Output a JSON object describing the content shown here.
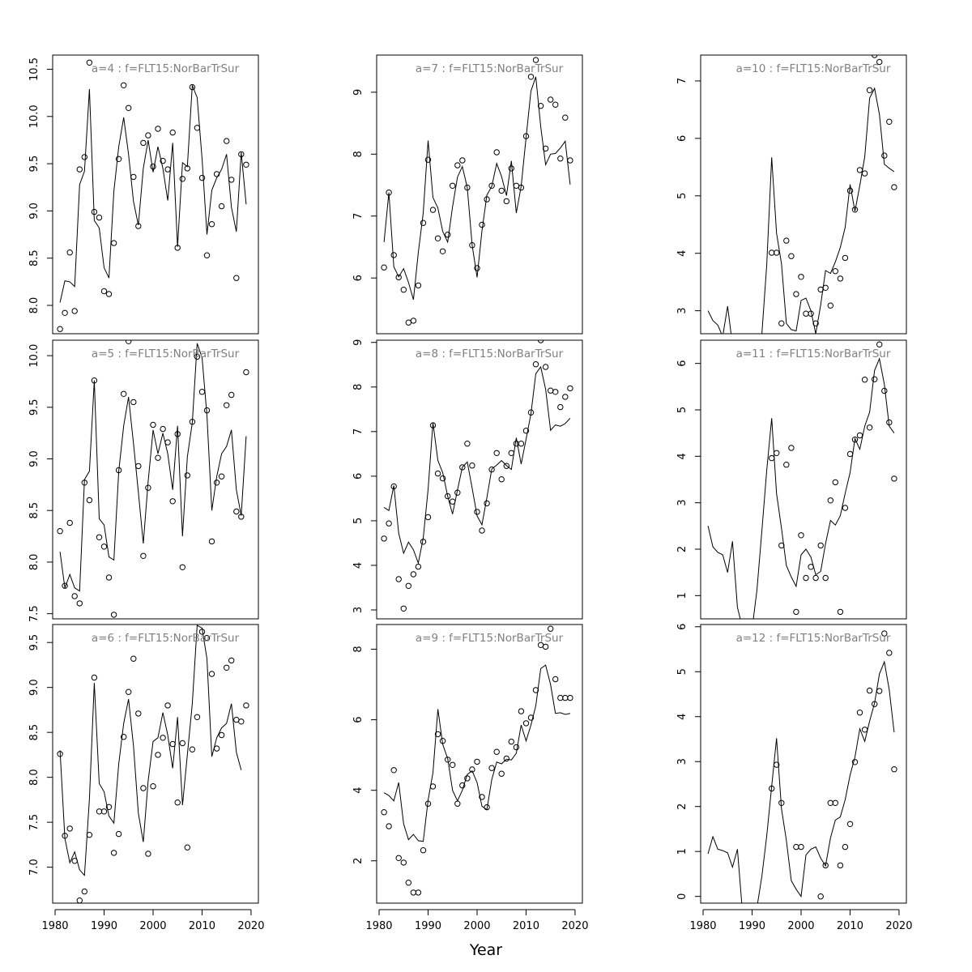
{
  "figure": {
    "xlabel": "Year"
  },
  "chart_data": [
    {
      "type": "scatter",
      "title": "a=4  :  f=FLT15:NorBarTrSur",
      "ylim": [
        7.7,
        10.65
      ],
      "xlim": [
        1981,
        2019
      ],
      "yticks": [
        8.0,
        8.5,
        9.0,
        9.5,
        10.0,
        10.5
      ],
      "xticks": [],
      "observed": [
        7.75,
        7.92,
        8.56,
        7.94,
        9.44,
        9.57,
        10.57,
        8.99,
        8.93,
        8.15,
        8.12,
        8.66,
        9.55,
        10.33,
        10.09,
        9.36,
        8.84,
        9.72,
        9.8,
        9.47,
        9.87,
        9.53,
        9.44,
        9.83,
        8.61,
        9.34,
        9.45,
        10.31,
        9.88,
        9.35,
        8.53,
        8.86,
        9.39,
        9.05,
        9.74,
        9.33,
        8.29,
        9.6,
        9.49
      ],
      "fitted": [
        8.03,
        8.26,
        8.25,
        8.2,
        9.28,
        9.42,
        10.29,
        8.9,
        8.82,
        8.4,
        8.29,
        9.21,
        9.68,
        9.99,
        9.6,
        9.1,
        8.85,
        9.45,
        9.75,
        9.41,
        9.68,
        9.45,
        9.11,
        9.72,
        8.62,
        9.51,
        9.47,
        10.33,
        10.2,
        9.55,
        8.75,
        9.22,
        9.35,
        9.44,
        9.6,
        9.04,
        8.78,
        9.62,
        9.07
      ]
    },
    {
      "type": "scatter",
      "title": "a=7  :  f=FLT15:NorBarTrSur",
      "ylim": [
        5.1,
        9.6
      ],
      "xlim": [
        1981,
        2019
      ],
      "yticks": [
        6,
        7,
        8,
        9
      ],
      "xticks": [],
      "observed": [
        6.17,
        7.38,
        6.37,
        6.01,
        5.81,
        5.28,
        5.31,
        5.88,
        6.89,
        7.91,
        7.1,
        6.64,
        6.43,
        6.7,
        7.49,
        7.82,
        7.9,
        7.46,
        6.53,
        6.16,
        6.86,
        7.27,
        7.49,
        8.03,
        7.41,
        7.24,
        7.77,
        7.49,
        7.46,
        8.29,
        9.25,
        9.52,
        8.78,
        8.09,
        8.88,
        8.8,
        7.93,
        8.59,
        7.9
      ],
      "fitted": [
        6.58,
        7.38,
        6.18,
        6.02,
        6.15,
        5.93,
        5.65,
        6.41,
        7.05,
        8.22,
        7.3,
        7.13,
        6.75,
        6.58,
        7.15,
        7.63,
        7.8,
        7.46,
        6.53,
        6.01,
        6.76,
        7.34,
        7.48,
        7.85,
        7.64,
        7.33,
        7.89,
        7.05,
        7.48,
        8.27,
        9.02,
        9.25,
        8.44,
        7.83,
        8.0,
        8.01,
        8.1,
        8.21,
        7.51
      ]
    },
    {
      "type": "scatter",
      "title": "a=10  :  f=FLT15:NorBarTrSur",
      "ylim": [
        2.6,
        7.45
      ],
      "xlim": [
        1981,
        2019
      ],
      "yticks": [
        3,
        4,
        5,
        6,
        7
      ],
      "xticks": [],
      "observed": [
        null,
        null,
        null,
        null,
        null,
        null,
        null,
        null,
        null,
        null,
        null,
        null,
        null,
        4.01,
        4.01,
        2.78,
        4.22,
        3.95,
        3.29,
        3.59,
        2.95,
        2.95,
        2.78,
        3.37,
        3.4,
        3.09,
        3.69,
        3.56,
        3.92,
        5.09,
        4.76,
        5.45,
        5.39,
        6.84,
        7.45,
        7.33,
        5.7,
        6.29,
        5.15
      ],
      "fitted": [
        3.0,
        2.83,
        2.75,
        2.55,
        3.08,
        2.4,
        2.2,
        2.1,
        2.0,
        2.05,
        2.3,
        2.6,
        3.8,
        5.67,
        4.35,
        3.82,
        2.78,
        2.67,
        2.65,
        3.18,
        3.22,
        3.0,
        2.6,
        3.1,
        3.7,
        3.65,
        3.85,
        4.1,
        4.45,
        5.2,
        4.73,
        5.18,
        5.68,
        6.7,
        6.87,
        6.42,
        5.55,
        5.48,
        5.42
      ]
    },
    {
      "type": "scatter",
      "title": "a=5  :  f=FLT15:NorBarTrSur",
      "ylim": [
        7.45,
        10.15
      ],
      "xlim": [
        1981,
        2019
      ],
      "yticks": [
        7.5,
        8.0,
        8.5,
        9.0,
        9.5,
        10.0
      ],
      "xticks": [],
      "observed": [
        8.3,
        7.77,
        8.38,
        7.67,
        7.6,
        8.77,
        8.6,
        9.76,
        8.24,
        8.15,
        7.85,
        7.49,
        8.89,
        9.63,
        10.14,
        9.55,
        8.93,
        8.06,
        8.72,
        9.33,
        9.01,
        9.29,
        9.16,
        8.59,
        9.24,
        7.95,
        8.84,
        9.36,
        9.99,
        9.65,
        9.47,
        8.2,
        8.77,
        8.83,
        9.52,
        9.62,
        8.49,
        8.44,
        9.84
      ],
      "fitted": [
        8.1,
        7.75,
        7.88,
        7.75,
        7.72,
        8.8,
        8.88,
        9.76,
        8.42,
        8.36,
        8.05,
        8.02,
        8.88,
        9.32,
        9.6,
        9.15,
        8.68,
        8.18,
        8.78,
        9.28,
        9.05,
        9.25,
        9.05,
        8.7,
        9.32,
        8.25,
        9.02,
        9.35,
        10.12,
        9.98,
        9.42,
        8.5,
        8.83,
        9.05,
        9.12,
        9.28,
        8.7,
        8.45,
        9.22
      ]
    },
    {
      "type": "scatter",
      "title": "a=8  :  f=FLT15:NorBarTrSur",
      "ylim": [
        2.8,
        9.05
      ],
      "xlim": [
        1981,
        2019
      ],
      "yticks": [
        3,
        4,
        5,
        6,
        7,
        8,
        9
      ],
      "xticks": [],
      "observed": [
        4.6,
        4.94,
        5.77,
        3.69,
        3.03,
        3.54,
        3.8,
        3.97,
        4.53,
        5.08,
        7.14,
        6.06,
        5.95,
        5.55,
        5.43,
        5.63,
        6.2,
        6.73,
        6.24,
        5.2,
        4.78,
        5.39,
        6.15,
        6.52,
        5.93,
        6.23,
        6.52,
        6.73,
        6.73,
        7.02,
        7.43,
        8.51,
        9.05,
        8.45,
        7.92,
        7.89,
        7.55,
        7.78,
        7.97
      ],
      "fitted": [
        5.3,
        5.23,
        5.79,
        4.72,
        4.27,
        4.52,
        4.35,
        4.05,
        4.61,
        5.7,
        7.2,
        6.35,
        6.08,
        5.55,
        5.15,
        5.69,
        6.2,
        6.32,
        5.73,
        5.11,
        4.91,
        5.52,
        6.16,
        6.25,
        6.35,
        6.24,
        6.15,
        6.86,
        6.27,
        6.83,
        7.4,
        8.3,
        8.45,
        7.95,
        7.03,
        7.15,
        7.12,
        7.18,
        7.3
      ]
    },
    {
      "type": "scatter",
      "title": "a=11  :  f=FLT15:NorBarTrSur",
      "ylim": [
        0.5,
        6.5
      ],
      "xlim": [
        1981,
        2019
      ],
      "yticks": [
        1,
        2,
        3,
        4,
        5,
        6
      ],
      "xticks": [],
      "observed": [
        null,
        null,
        null,
        null,
        null,
        null,
        null,
        null,
        null,
        null,
        null,
        null,
        null,
        3.96,
        4.07,
        2.08,
        3.82,
        4.18,
        0.65,
        2.3,
        1.38,
        1.62,
        1.38,
        2.08,
        1.38,
        3.05,
        3.44,
        0.65,
        2.89,
        4.05,
        4.36,
        4.45,
        5.65,
        4.62,
        5.66,
        6.41,
        5.41,
        4.73,
        3.52
      ],
      "fitted": [
        2.5,
        2.05,
        1.93,
        1.88,
        1.5,
        2.17,
        0.75,
        0.32,
        0.2,
        0.28,
        1.12,
        2.4,
        3.7,
        4.82,
        3.2,
        2.45,
        1.65,
        1.4,
        1.2,
        1.88,
        2.0,
        1.83,
        1.45,
        1.52,
        2.12,
        2.62,
        2.52,
        2.72,
        3.2,
        3.65,
        4.38,
        4.15,
        4.65,
        4.95,
        5.85,
        6.1,
        5.55,
        4.65,
        4.5
      ]
    },
    {
      "type": "scatter",
      "title": "a=6  :  f=FLT15:NorBarTrSur",
      "ylim": [
        6.6,
        9.7
      ],
      "xlim": [
        1981,
        2019
      ],
      "yticks": [
        7.0,
        7.5,
        8.0,
        8.5,
        9.0,
        9.5
      ],
      "xticks": [
        1980,
        1990,
        2000,
        2010,
        2020
      ],
      "observed": [
        8.26,
        7.35,
        7.43,
        7.07,
        6.63,
        6.73,
        7.36,
        9.11,
        7.62,
        7.62,
        7.67,
        7.16,
        7.37,
        8.45,
        8.95,
        9.32,
        8.71,
        7.88,
        7.15,
        7.9,
        8.25,
        8.44,
        8.8,
        8.37,
        7.72,
        8.38,
        7.22,
        8.31,
        8.67,
        9.62,
        9.55,
        9.15,
        8.32,
        8.47,
        9.22,
        9.3,
        8.64,
        8.62,
        8.8
      ],
      "fitted": [
        8.3,
        7.32,
        7.05,
        7.17,
        6.97,
        6.91,
        7.76,
        9.05,
        7.93,
        7.84,
        7.57,
        7.49,
        8.15,
        8.6,
        8.87,
        8.35,
        7.6,
        7.28,
        7.96,
        8.4,
        8.44,
        8.72,
        8.47,
        8.1,
        8.67,
        7.69,
        8.25,
        8.82,
        9.69,
        9.66,
        9.32,
        8.23,
        8.44,
        8.55,
        8.6,
        8.82,
        8.28,
        8.08,
        null
      ]
    },
    {
      "type": "scatter",
      "title": "a=9  :  f=FLT15:NorBarTrSur",
      "ylim": [
        0.8,
        8.7
      ],
      "xlim": [
        1981,
        2019
      ],
      "yticks": [
        2,
        4,
        6,
        8
      ],
      "xticks": [
        1980,
        1990,
        2000,
        2010,
        2020
      ],
      "observed": [
        3.38,
        2.98,
        4.57,
        2.08,
        1.95,
        1.38,
        1.1,
        1.1,
        2.3,
        3.62,
        4.11,
        5.59,
        5.4,
        4.87,
        4.72,
        3.62,
        4.14,
        4.34,
        4.59,
        4.81,
        3.81,
        3.52,
        4.63,
        5.09,
        4.47,
        4.9,
        5.38,
        5.22,
        6.24,
        5.9,
        6.06,
        6.84,
        8.12,
        8.07,
        8.58,
        7.15,
        6.62,
        6.62,
        6.62
      ],
      "fitted": [
        3.93,
        3.85,
        3.7,
        4.22,
        3.05,
        2.6,
        2.75,
        2.57,
        2.55,
        3.72,
        4.5,
        6.3,
        5.3,
        4.9,
        4.0,
        3.7,
        4.0,
        4.45,
        4.55,
        4.22,
        3.55,
        3.45,
        4.3,
        4.8,
        4.75,
        4.88,
        4.86,
        5.05,
        5.85,
        5.4,
        5.85,
        6.4,
        7.45,
        7.55,
        7.0,
        6.18,
        6.2,
        6.15,
        6.18
      ]
    },
    {
      "type": "scatter",
      "title": "a=12  :  f=FLT15:NorBarTrSur",
      "ylim": [
        -0.15,
        6.05
      ],
      "xlim": [
        1981,
        2019
      ],
      "yticks": [
        0,
        1,
        2,
        3,
        4,
        5,
        6
      ],
      "xticks": [
        1980,
        1990,
        2000,
        2010,
        2020
      ],
      "observed": [
        null,
        null,
        null,
        null,
        null,
        null,
        null,
        null,
        null,
        null,
        null,
        null,
        null,
        2.4,
        2.93,
        2.08,
        null,
        null,
        1.1,
        1.1,
        null,
        null,
        null,
        0.0,
        0.69,
        2.08,
        2.08,
        0.69,
        1.1,
        1.61,
        2.99,
        4.09,
        3.71,
        4.58,
        4.28,
        4.57,
        5.85,
        5.42,
        2.83
      ],
      "fitted": [
        0.95,
        1.33,
        1.05,
        1.02,
        0.97,
        0.65,
        1.05,
        -0.3,
        -0.6,
        -0.6,
        -0.25,
        0.45,
        1.35,
        2.45,
        3.52,
        1.95,
        1.25,
        0.35,
        0.16,
        0.0,
        0.92,
        1.05,
        1.1,
        0.85,
        0.68,
        1.3,
        1.7,
        1.77,
        2.15,
        2.7,
        3.1,
        3.73,
        3.45,
        3.9,
        4.3,
        4.95,
        5.22,
        4.6,
        3.65
      ]
    }
  ]
}
